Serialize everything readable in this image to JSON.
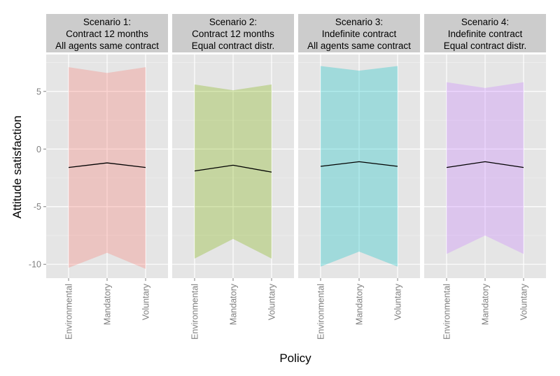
{
  "chart_data": {
    "type": "area",
    "xlabel": "Policy",
    "ylabel": "Attitude satisfaction",
    "categories": [
      "Environmental",
      "Mandatory",
      "Voluntary"
    ],
    "ylim": [
      -11.2,
      8.2
    ],
    "yticks": [
      -10,
      -5,
      0,
      5
    ],
    "grid": true,
    "facets": [
      {
        "title_lines": [
          "Scenario 1:",
          "Contract 12 months",
          "All agents same contract"
        ],
        "band_color": "#F8766D",
        "upper": [
          7.1,
          6.6,
          7.1
        ],
        "lower": [
          -10.3,
          -9.0,
          -10.4
        ],
        "mean": [
          -1.6,
          -1.2,
          -1.6
        ]
      },
      {
        "title_lines": [
          "Scenario 2:",
          "Contract 12 months",
          "Equal contract distr."
        ],
        "band_color": "#7CAE00",
        "upper": [
          5.6,
          5.1,
          5.6
        ],
        "lower": [
          -9.5,
          -7.8,
          -9.5
        ],
        "mean": [
          -1.9,
          -1.4,
          -2.0
        ]
      },
      {
        "title_lines": [
          "Scenario 3:",
          "Indefinite contract",
          "All agents same contract"
        ],
        "band_color": "#00BFC4",
        "upper": [
          7.2,
          6.8,
          7.2
        ],
        "lower": [
          -10.2,
          -8.9,
          -10.2
        ],
        "mean": [
          -1.5,
          -1.1,
          -1.5
        ]
      },
      {
        "title_lines": [
          "Scenario 4:",
          "Indefinite contract",
          "Equal contract distr."
        ],
        "band_color": "#C77CFF",
        "upper": [
          5.8,
          5.3,
          5.8
        ],
        "lower": [
          -9.1,
          -7.5,
          -9.1
        ],
        "mean": [
          -1.6,
          -1.1,
          -1.6
        ]
      }
    ]
  }
}
